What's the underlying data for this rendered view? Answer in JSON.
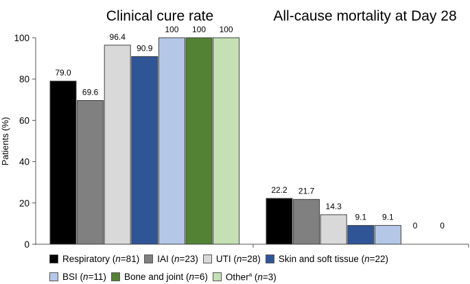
{
  "chart_data": [
    {
      "type": "bar",
      "title": "Clinical cure rate",
      "ylabel": "Patients (%)",
      "ylim": [
        0,
        100
      ],
      "yticks": [
        0,
        20,
        40,
        60,
        80,
        100
      ],
      "categories": [
        "Respiratory",
        "IAI",
        "UTI",
        "Skin and soft tissue",
        "BSI",
        "Bone and joint",
        "Other"
      ],
      "values": [
        79.0,
        69.6,
        96.4,
        90.9,
        100,
        100,
        100
      ],
      "labels": [
        "79.0",
        "69.6",
        "96.4",
        "90.9",
        "100",
        "100",
        "100"
      ]
    },
    {
      "type": "bar",
      "title": "All-cause mortality at Day 28",
      "ylabel": "Patients (%)",
      "ylim": [
        0,
        100
      ],
      "categories": [
        "Respiratory",
        "IAI",
        "UTI",
        "Skin and soft tissue",
        "BSI",
        "Bone and joint",
        "Other"
      ],
      "values": [
        22.2,
        21.7,
        14.3,
        9.1,
        9.1,
        0,
        0
      ],
      "labels": [
        "22.2",
        "21.7",
        "14.3",
        "9.1",
        "9.1",
        "0",
        "0"
      ]
    }
  ],
  "colors": [
    "#000000",
    "#808080",
    "#d9d9d9",
    "#2f5597",
    "#b4c7e7",
    "#548235",
    "#c5e0b4"
  ],
  "legend": [
    {
      "name": "Respiratory",
      "n": "81"
    },
    {
      "name": "IAI",
      "n": "23"
    },
    {
      "name": "UTI",
      "n": "28"
    },
    {
      "name": "Skin and soft tissue",
      "n": "22"
    },
    {
      "name": "BSI",
      "n": "11"
    },
    {
      "name": "Bone and joint",
      "n": "6"
    },
    {
      "name": "Other",
      "sup": "a",
      "n": "3"
    }
  ],
  "legend_n_prefix": "n"
}
